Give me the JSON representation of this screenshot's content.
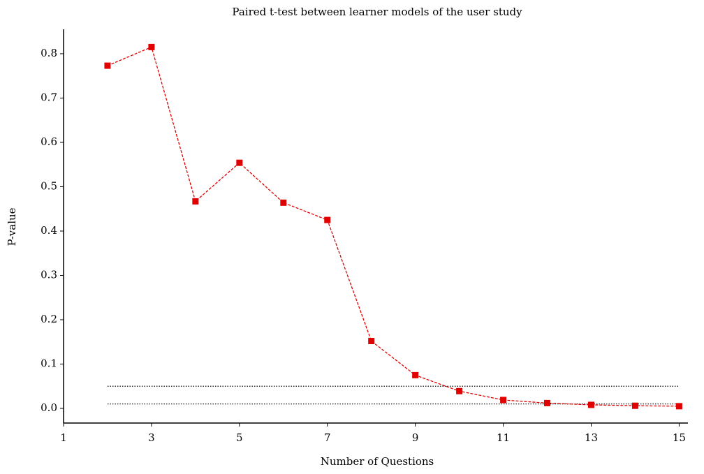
{
  "chart_data": {
    "type": "line",
    "title": "Paired t-test between learner models of the user study",
    "x_label": "Number of Questions",
    "y_label": "P-value",
    "x": [
      2,
      3,
      4,
      5,
      6,
      7,
      8,
      9,
      10,
      11,
      12,
      13,
      14,
      15
    ],
    "series": [
      {
        "name": "P-value",
        "color": "#e00000",
        "values": [
          0.773,
          0.815,
          0.467,
          0.554,
          0.464,
          0.425,
          0.152,
          0.075,
          0.039,
          0.019,
          0.012,
          0.008,
          0.006,
          0.005
        ]
      }
    ],
    "reference_lines": [
      {
        "y": 0.05,
        "x": [
          2,
          15
        ]
      },
      {
        "y": 0.01,
        "x": [
          2,
          15
        ]
      }
    ],
    "xlim": [
      1,
      15.2
    ],
    "ylim": [
      -0.033,
      0.855
    ],
    "xticks": [
      1,
      3,
      5,
      7,
      9,
      11,
      13,
      15
    ],
    "yticks": [
      {
        "value": 0,
        "label": "0.0"
      },
      0.1,
      0.2,
      0.3,
      0.4,
      0.5,
      0.6,
      0.7,
      0.8
    ],
    "grid": false
  }
}
